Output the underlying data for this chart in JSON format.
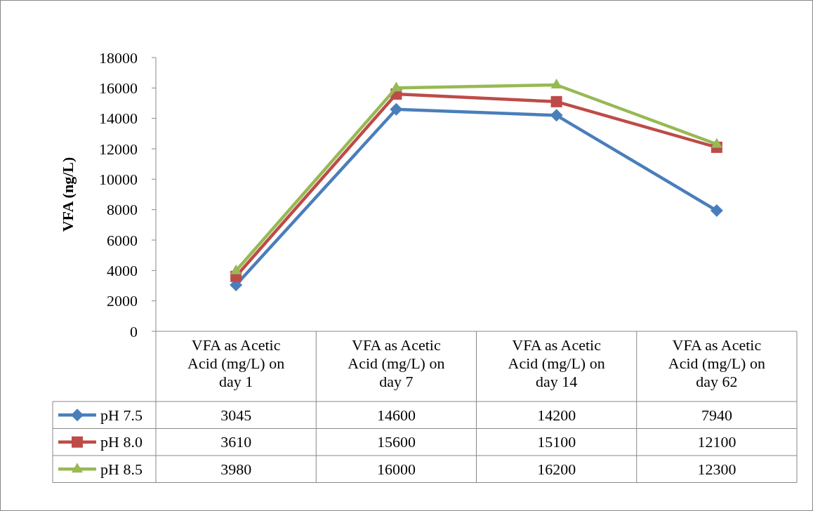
{
  "chart_data": {
    "type": "line",
    "ylabel": "VFA (ng/L)",
    "categories": [
      "VFA as Acetic Acid (mg/L) on day 1",
      "VFA as Acetic Acid (mg/L) on day 7",
      "VFA as Acetic Acid (mg/L) on day 14",
      "VFA as Acetic Acid (mg/L) on day 62"
    ],
    "series": [
      {
        "name": "pH 7.5",
        "color": "#4a7ebb",
        "marker": "diamond",
        "values": [
          3045,
          14600,
          14200,
          7940
        ]
      },
      {
        "name": "pH 8.0",
        "color": "#be4b48",
        "marker": "square",
        "values": [
          3610,
          15600,
          15100,
          12100
        ]
      },
      {
        "name": "pH 8.5",
        "color": "#98b954",
        "marker": "triangle",
        "values": [
          3980,
          16000,
          16200,
          12300
        ]
      }
    ],
    "ylim": [
      0,
      18000
    ],
    "yticks": [
      0,
      2000,
      4000,
      6000,
      8000,
      10000,
      12000,
      14000,
      16000,
      18000
    ],
    "grid": false,
    "legend": "bottom",
    "data_labels": true
  }
}
